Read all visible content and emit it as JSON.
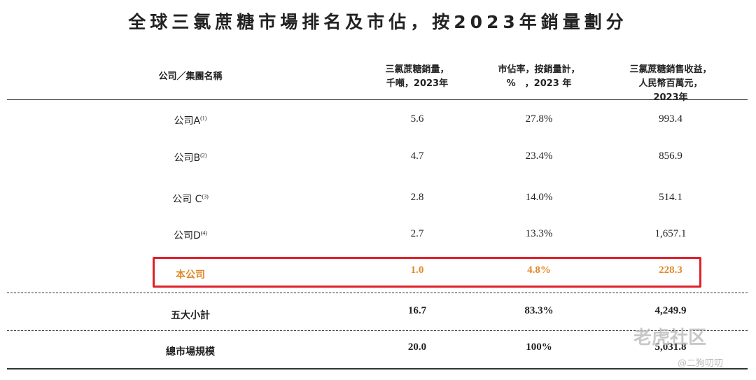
{
  "title": "全球三氯蔗糖市場排名及市佔，按2023年銷量劃分",
  "table": {
    "header": [
      "公司／集團名稱",
      "三氯蔗糖銷量，\n千噸，2023年",
      "市佔率，按銷量計，\n%　，2023 年",
      "三氯蔗糖銷售收益，\n人民幣百萬元，2023年"
    ],
    "rows": [
      {
        "name": "公司A",
        "note": "(1)",
        "cells": [
          "5.6",
          "27.8%",
          "993.4"
        ]
      },
      {
        "name": "公司B",
        "note": "(2)",
        "cells": [
          "4.7",
          "23.4%",
          "856.9"
        ]
      },
      {
        "name": "公司 C",
        "note": "(3)",
        "cells": [
          "2.8",
          "14.0%",
          "514.1"
        ]
      },
      {
        "name": "公司D",
        "note": "(4)",
        "cells": [
          "2.7",
          "13.3%",
          "1,657.1"
        ]
      },
      {
        "name": "本公司",
        "cells": [
          "1.0",
          "4.8%",
          "228.3"
        ]
      },
      {
        "name": "五大小計",
        "cells": [
          "16.7",
          "83.3%",
          "4,249.9"
        ]
      },
      {
        "name": "總市場規模",
        "cells": [
          "20.0",
          "100%",
          "5,031.8"
        ]
      }
    ]
  },
  "watermark": {
    "brand": "老虎社区",
    "author": "@二狗叨叨"
  }
}
